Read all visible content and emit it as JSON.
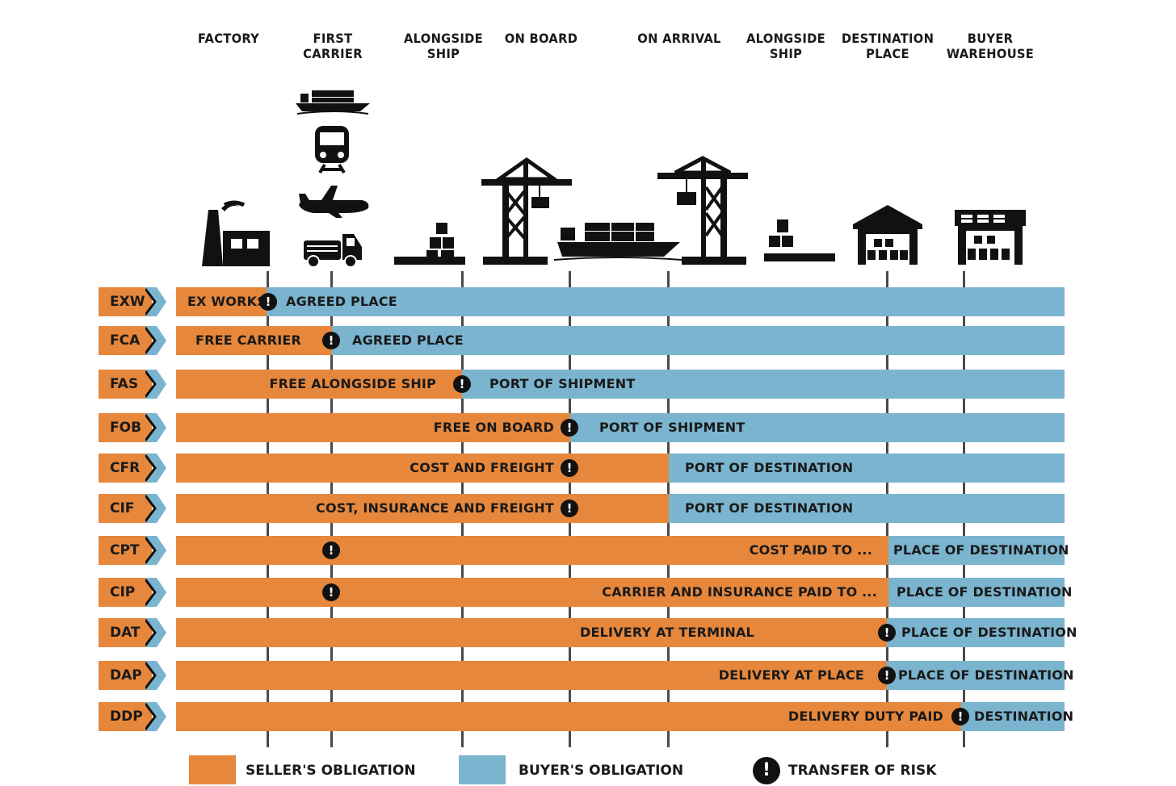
{
  "stages": [
    {
      "label": "FACTORY"
    },
    {
      "label": "FIRST\nCARRIER"
    },
    {
      "label": "ALONGSIDE\nSHIP"
    },
    {
      "label": "ON BOARD"
    },
    {
      "label": "ON ARRIVAL"
    },
    {
      "label": "ALONGSIDE\nSHIP"
    },
    {
      "label": "DESTINATION\nPLACE"
    },
    {
      "label": "BUYER\nWAREHOUSE"
    }
  ],
  "icons": [
    "factory-icon",
    "cargo-ship-icon",
    "train-icon",
    "airplane-icon",
    "truck-icon",
    "pallet-icon",
    "crane-icon",
    "container-ship-icon",
    "crane-icon",
    "pallet-icon",
    "warehouse-icon",
    "warehouse-icon"
  ],
  "rows": [
    {
      "code": "EXW",
      "seller_label": "EX WORKS",
      "buyer_label": "AGREED PLACE"
    },
    {
      "code": "FCA",
      "seller_label": "FREE CARRIER",
      "buyer_label": "AGREED PLACE"
    },
    {
      "code": "FAS",
      "seller_label": "FREE ALONGSIDE SHIP",
      "buyer_label": "PORT OF SHIPMENT"
    },
    {
      "code": "FOB",
      "seller_label": "FREE ON BOARD",
      "buyer_label": "PORT OF SHIPMENT"
    },
    {
      "code": "CFR",
      "seller_label": "COST AND FREIGHT",
      "buyer_label": "PORT OF DESTINATION"
    },
    {
      "code": "CIF",
      "seller_label": "COST, INSURANCE AND FREIGHT",
      "buyer_label": "PORT OF DESTINATION"
    },
    {
      "code": "CPT",
      "seller_label": "COST PAID TO ...",
      "buyer_label": "PLACE OF DESTINATION"
    },
    {
      "code": "CIP",
      "seller_label": "CARRIER AND INSURANCE PAID TO ...",
      "buyer_label": "PLACE OF DESTINATION"
    },
    {
      "code": "DAT",
      "seller_label": "DELIVERY AT TERMINAL",
      "buyer_label": "PLACE OF DESTINATION"
    },
    {
      "code": "DAP",
      "seller_label": "DELIVERY AT PLACE",
      "buyer_label": "PLACE OF DESTINATION"
    },
    {
      "code": "DDP",
      "seller_label": "DELIVERY DUTY PAID",
      "buyer_label": "DESTINATION"
    }
  ],
  "risk_symbol": "!",
  "legend": {
    "seller": "SELLER'S OBLIGATION",
    "buyer": "BUYER'S OBLIGATION",
    "risk": "TRANSFER OF RISK"
  },
  "colors": {
    "seller": "#e6873c",
    "buyer": "#7ab4cf",
    "chevron": "#7ab4cf",
    "risk": "#111111"
  }
}
